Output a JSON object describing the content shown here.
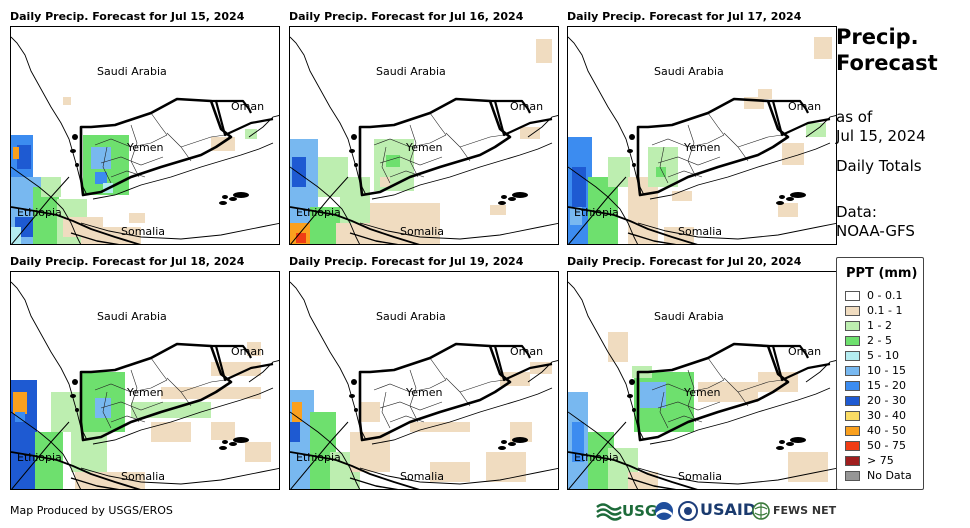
{
  "panels": [
    {
      "title": "Daily Precip. Forecast for Jul 15, 2024",
      "pattern": "p1"
    },
    {
      "title": "Daily Precip. Forecast for Jul 16, 2024",
      "pattern": "p2"
    },
    {
      "title": "Daily Precip. Forecast for Jul 17, 2024",
      "pattern": "p3"
    },
    {
      "title": "Daily Precip. Forecast for Jul 18, 2024",
      "pattern": "p4"
    },
    {
      "title": "Daily Precip. Forecast for Jul 19, 2024",
      "pattern": "p5"
    },
    {
      "title": "Daily Precip. Forecast for Jul 20, 2024",
      "pattern": "p6"
    }
  ],
  "map_labels": {
    "saudi_arabia": "Saudi Arabia",
    "oman": "Oman",
    "yemen": "Yemen",
    "ethiopia": "Ethiopia",
    "somalia": "Somalia"
  },
  "side": {
    "title_line1": "Precip.",
    "title_line2": "Forecast",
    "as_of": "as of",
    "date": "Jul 15, 2024",
    "totals": "Daily Totals",
    "data_label": "Data:",
    "data_source": "NOAA-GFS"
  },
  "legend": {
    "title": "PPT (mm)",
    "items": [
      {
        "label": "0 - 0.1",
        "color": "#ffffff"
      },
      {
        "label": "0.1 - 1",
        "color": "#f0dcc0"
      },
      {
        "label": "1 - 2",
        "color": "#bdeeb0"
      },
      {
        "label": "2 - 5",
        "color": "#6ee06e"
      },
      {
        "label": "5 - 10",
        "color": "#b4ecf0"
      },
      {
        "label": "10 - 15",
        "color": "#78b8f0"
      },
      {
        "label": "15 - 20",
        "color": "#3c8cf0"
      },
      {
        "label": "20 - 30",
        "color": "#1e5ad2"
      },
      {
        "label": "30 - 40",
        "color": "#fadc64"
      },
      {
        "label": "40 - 50",
        "color": "#faa01e"
      },
      {
        "label": "50 - 75",
        "color": "#f03c14"
      },
      {
        "label": "> 75",
        "color": "#a01e1e"
      },
      {
        "label": "No Data",
        "color": "#969696"
      }
    ]
  },
  "footer": {
    "credit": "Map Produced by USGS/EROS",
    "logo_usgs": "USGS",
    "logo_usaid": "USAID",
    "logo_fewsnet": "FEWS NET"
  }
}
